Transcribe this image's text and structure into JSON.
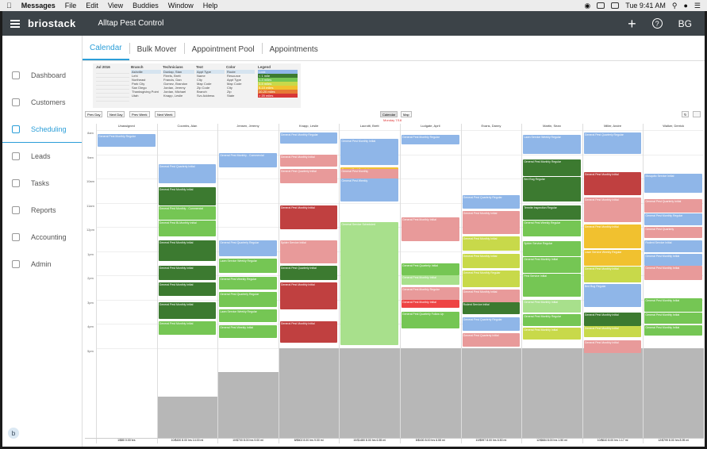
{
  "os_menubar": {
    "items": [
      "Messages",
      "File",
      "Edit",
      "View",
      "Buddies",
      "Window",
      "Help"
    ],
    "clock": "Tue 9:41 AM"
  },
  "topbar": {
    "brand": "briostack",
    "company": "Alltap Pest Control",
    "initials": "BG",
    "add_icon": "+",
    "help_icon": "?"
  },
  "sidebar": {
    "items": [
      "Dashboard",
      "Customers",
      "Scheduling",
      "Leads",
      "Tasks",
      "Reports",
      "Accounting",
      "Admin"
    ],
    "icons": [
      "activity-icon",
      "user-icon",
      "calendar-icon",
      "group-icon",
      "task-icon",
      "report-icon",
      "dollar-icon",
      "admin-icon"
    ],
    "active_index": 2,
    "chat_badge": "b"
  },
  "tabs": {
    "items": [
      "Calendar",
      "Bulk Mover",
      "Appointment Pool",
      "Appointments"
    ],
    "active_index": 0
  },
  "filters": {
    "month": "Jul 2016",
    "branch_header": "Branch",
    "branches": [
      "Ashville",
      "Lehi",
      "Northeast",
      "Park City",
      "San Diego",
      "Thanksgiving Point",
      "Utah"
    ],
    "technicians_header": "Technicians",
    "technicians": [
      "Dunlap, Stan",
      "Fleets, Brett",
      "Francis, Dan",
      "Gomez, Brandon",
      "Jordan, Jeremy",
      "Jordan, Michael",
      "Knapp, Leslie"
    ],
    "text_header": "Text",
    "text_options": [
      "Appt Type",
      "Name",
      "City",
      "Map Code",
      "Zip Code",
      "Branch",
      "Svc Address"
    ],
    "color_header": "Color",
    "color_options": [
      "Route",
      "Resource",
      "Appt Type",
      "Map Code",
      "City",
      "Zip",
      "State"
    ],
    "legend_header": "Legend",
    "legend_items": [
      "Lock",
      "< 1 mile",
      "1-3 miles",
      "3-5 miles",
      "5-10 miles",
      "10-20 miles",
      "> 20 miles"
    ],
    "legend_colors": [
      "#8fb6e8",
      "#3c7a30",
      "#75c654",
      "#c8d94a",
      "#f1c12f",
      "#e77a35",
      "#d73737"
    ]
  },
  "toolbar": {
    "buttons": [
      "Prev Day",
      "Next Day",
      "Prev Week",
      "Next Week"
    ],
    "view_toggle": [
      "Calendar",
      "Map"
    ],
    "date_label": "Monday 7/18",
    "refresh_icon": "↻"
  },
  "calendar": {
    "hours": [
      "8am",
      "9am",
      "10am",
      "11am",
      "12pm",
      "1pm",
      "2pm",
      "3pm",
      "4pm",
      "5pm"
    ],
    "columns": [
      "Unassigned",
      "Coombs, Alan",
      "Jensen, Jeremy",
      "Knapp, Leslie",
      "Lacrotti, Brett",
      "Ludgate, April",
      "Evans, Danny",
      "Martin, Sean",
      "Miller, Andre",
      "Walker, Derrick"
    ],
    "footer": [
      "1/$80 0.00 hrs",
      "10/$430 8.00 hrs 14.00 mi",
      "10/$700 8.00 hrs 9.00 mi",
      "8/$602 8.00 hrs 9.00 mi",
      "10/$1480 8.00 hrs 6.55 mi",
      "8/$430 8.00 hrs 6.55 mi",
      "10/$997 8.00 hrs 6.50 mi",
      "12/$684 8.00 hrs 1.50 mi",
      "10/$610 8.00 hrs 1.17 mi",
      "12/$799 8.00 hrs 8.95 mi"
    ],
    "appointments": [
      {
        "col": 0,
        "start": 8.15,
        "end": 8.7,
        "color": "#8fb6e8",
        "label": "General Pest Monthly Regular"
      },
      {
        "col": 1,
        "start": 9.4,
        "end": 10.2,
        "color": "#8fb6e8",
        "label": "General Pest Quarterly Initial"
      },
      {
        "col": 1,
        "start": 10.35,
        "end": 11.1,
        "color": "#3c7a30",
        "label": "General Pest Monthly Initial"
      },
      {
        "col": 1,
        "start": 11.15,
        "end": 11.7,
        "color": "#75c654",
        "label": "General Pest Monthly - Commercial"
      },
      {
        "col": 1,
        "start": 11.75,
        "end": 12.4,
        "color": "#75c654",
        "label": "General Pest Bi-Monthly Initial"
      },
      {
        "col": 1,
        "start": 12.55,
        "end": 13.4,
        "color": "#3c7a30",
        "label": "General Pest Monthly Initial"
      },
      {
        "col": 1,
        "start": 13.6,
        "end": 14.2,
        "color": "#3c7a30",
        "label": "General Pest Monthly Initial"
      },
      {
        "col": 1,
        "start": 14.3,
        "end": 14.85,
        "color": "#3c7a30",
        "label": "General Pest Monthly Initial"
      },
      {
        "col": 1,
        "start": 15.1,
        "end": 15.8,
        "color": "#3c7a30",
        "label": "General Pest Monthly Initial"
      },
      {
        "col": 1,
        "start": 15.9,
        "end": 16.45,
        "color": "#75c654",
        "label": "General Pest Monthly Initial"
      },
      {
        "col": 2,
        "start": 8.95,
        "end": 9.55,
        "color": "#8fb6e8",
        "label": "General Pest Monthly - Commercial"
      },
      {
        "col": 2,
        "start": 12.55,
        "end": 13.2,
        "color": "#8fb6e8",
        "label": "General Pest Quarterly Regular"
      },
      {
        "col": 2,
        "start": 13.3,
        "end": 13.9,
        "color": "#75c654",
        "label": "Lawn Service Weekly Regular"
      },
      {
        "col": 2,
        "start": 14.05,
        "end": 14.6,
        "color": "#75c654",
        "label": "General Pest Weekly Regular"
      },
      {
        "col": 2,
        "start": 14.7,
        "end": 15.3,
        "color": "#75c654",
        "label": "General Pest Quarterly Regular"
      },
      {
        "col": 2,
        "start": 15.4,
        "end": 15.95,
        "color": "#75c654",
        "label": "Lawn Service Weekly Regular"
      },
      {
        "col": 2,
        "start": 16.05,
        "end": 16.6,
        "color": "#75c654",
        "label": "General Pest Weekly Initial"
      },
      {
        "col": 3,
        "start": 8.1,
        "end": 8.55,
        "color": "#8fb6e8",
        "label": "General Pest Monthly Regular"
      },
      {
        "col": 3,
        "start": 9.0,
        "end": 9.5,
        "color": "#e89a9a",
        "label": "General Pest Monthly Initial"
      },
      {
        "col": 3,
        "start": 9.6,
        "end": 10.2,
        "color": "#e89a9a",
        "label": "General Pest Quarterly Initial"
      },
      {
        "col": 3,
        "start": 11.1,
        "end": 12.1,
        "color": "#c04040",
        "label": "General Pest Monthly Initial"
      },
      {
        "col": 3,
        "start": 12.55,
        "end": 13.5,
        "color": "#e89a9a",
        "label": "Spider Service Initial"
      },
      {
        "col": 3,
        "start": 13.6,
        "end": 14.2,
        "color": "#3c7a30",
        "label": "General Pest Quarterly Initial"
      },
      {
        "col": 3,
        "start": 14.3,
        "end": 15.4,
        "color": "#c04040",
        "label": "General Pest Monthly Initial"
      },
      {
        "col": 3,
        "start": 15.9,
        "end": 16.8,
        "color": "#c04040",
        "label": "General Pest Monthly Initial"
      },
      {
        "col": 4,
        "start": 8.35,
        "end": 9.45,
        "color": "#8fb6e8",
        "label": "General Pest Monthly Initial"
      },
      {
        "col": 4,
        "start": 9.55,
        "end": 10.25,
        "color": "#f1c12f",
        "label": "General Pest Quarterly"
      },
      {
        "col": 4,
        "start": 9.6,
        "end": 10.0,
        "color": "#e89a9a",
        "label": "General Pest Monthly"
      },
      {
        "col": 4,
        "start": 10.0,
        "end": 10.95,
        "color": "#8fb6e8",
        "label": "General Pest Weekly"
      },
      {
        "col": 4,
        "start": 11.8,
        "end": 16.9,
        "color": "#a8e08c",
        "label": "General Service Scheduled"
      },
      {
        "col": 5,
        "start": 8.2,
        "end": 8.6,
        "color": "#8fb6e8",
        "label": "General Pest Monthly Regular"
      },
      {
        "col": 5,
        "start": 11.6,
        "end": 12.6,
        "color": "#e89a9a",
        "label": "General Pest Monthly Initial"
      },
      {
        "col": 5,
        "start": 13.5,
        "end": 14.0,
        "color": "#75c654",
        "label": "General Pest Quarterly Initial"
      },
      {
        "col": 5,
        "start": 14.0,
        "end": 14.4,
        "color": "#a8e08c",
        "label": "General Pest Monthly Initial"
      },
      {
        "col": 5,
        "start": 14.5,
        "end": 15.0,
        "color": "#e89a9a",
        "label": "General Pest Monthly Regular"
      },
      {
        "col": 5,
        "start": 15.0,
        "end": 15.35,
        "color": "#e44",
        "label": "General Pest Monthly Initial"
      },
      {
        "col": 5,
        "start": 15.5,
        "end": 16.2,
        "color": "#75c654",
        "label": "General Pest Quarterly Follow Up"
      },
      {
        "col": 6,
        "start": 10.7,
        "end": 11.25,
        "color": "#8fb6e8",
        "label": "General Pest Quarterly Regular"
      },
      {
        "col": 6,
        "start": 11.35,
        "end": 12.3,
        "color": "#e89a9a",
        "label": "General Pest Monthly Initial"
      },
      {
        "col": 6,
        "start": 12.4,
        "end": 13.0,
        "color": "#c8d94a",
        "label": "General Pest Monthly Initial"
      },
      {
        "col": 6,
        "start": 13.1,
        "end": 13.7,
        "color": "#c8d94a",
        "label": "General Pest Monthly Initial"
      },
      {
        "col": 6,
        "start": 13.8,
        "end": 14.5,
        "color": "#c8d94a",
        "label": "General Pest Monthly Regular"
      },
      {
        "col": 6,
        "start": 14.6,
        "end": 15.1,
        "color": "#e89a9a",
        "label": "General Pest Monthly Initial"
      },
      {
        "col": 6,
        "start": 15.1,
        "end": 15.6,
        "color": "#3c7a30",
        "label": "Rodent Service Initial"
      },
      {
        "col": 6,
        "start": 15.75,
        "end": 16.3,
        "color": "#8fb6e8",
        "label": "General Pest Quarterly Regular"
      },
      {
        "col": 6,
        "start": 16.4,
        "end": 16.95,
        "color": "#e89a9a",
        "label": "General Pest Quarterly Initial"
      },
      {
        "col": 7,
        "start": 8.2,
        "end": 9.0,
        "color": "#8fb6e8",
        "label": "Lawn Service Weekly Regular"
      },
      {
        "col": 7,
        "start": 9.2,
        "end": 9.9,
        "color": "#3c7a30",
        "label": "General Pest Monthly Regular"
      },
      {
        "col": 7,
        "start": 9.95,
        "end": 10.95,
        "color": "#3c7a30",
        "label": "Bed Bug Regular"
      },
      {
        "col": 7,
        "start": 11.1,
        "end": 11.7,
        "color": "#3c7a30",
        "label": "Termite Inspection Regular"
      },
      {
        "col": 7,
        "start": 11.75,
        "end": 12.4,
        "color": "#75c654",
        "label": "General Pest Weekly Regular"
      },
      {
        "col": 7,
        "start": 12.6,
        "end": 13.2,
        "color": "#75c654",
        "label": "Spider Service Regular"
      },
      {
        "col": 7,
        "start": 13.25,
        "end": 13.9,
        "color": "#75c654",
        "label": "General Pest Monthly Initial"
      },
      {
        "col": 7,
        "start": 13.95,
        "end": 14.9,
        "color": "#75c654",
        "label": "Pest Service Initial"
      },
      {
        "col": 7,
        "start": 15.0,
        "end": 15.55,
        "color": "#a8e08c",
        "label": "General Pest Monthly Initial"
      },
      {
        "col": 7,
        "start": 15.6,
        "end": 16.1,
        "color": "#75c654",
        "label": "General Pest Monthly Regular"
      },
      {
        "col": 7,
        "start": 16.15,
        "end": 16.65,
        "color": "#c8d94a",
        "label": "General Pest Monthly Initial"
      },
      {
        "col": 8,
        "start": 8.1,
        "end": 9.0,
        "color": "#8fb6e8",
        "label": "General Pest Quarterly Regular"
      },
      {
        "col": 8,
        "start": 9.75,
        "end": 10.7,
        "color": "#c04040",
        "label": "General Pest Monthly Initial"
      },
      {
        "col": 8,
        "start": 10.8,
        "end": 11.8,
        "color": "#e89a9a",
        "label": "General Pest Monthly Initial"
      },
      {
        "col": 8,
        "start": 11.9,
        "end": 12.9,
        "color": "#f1c12f",
        "label": "General Pest Monthly Initial"
      },
      {
        "col": 8,
        "start": 12.95,
        "end": 13.6,
        "color": "#f1c12f",
        "label": "Lawn Service Weekly Regular"
      },
      {
        "col": 8,
        "start": 13.65,
        "end": 14.3,
        "color": "#c8d94a",
        "label": "General Pest Monthly Initial"
      },
      {
        "col": 8,
        "start": 14.35,
        "end": 15.3,
        "color": "#8fb6e8",
        "label": "Bed Bug Regular"
      },
      {
        "col": 8,
        "start": 15.55,
        "end": 16.1,
        "color": "#3c7a30",
        "label": "General Pest Monthly Initial"
      },
      {
        "col": 8,
        "start": 16.1,
        "end": 16.55,
        "color": "#c8d94a",
        "label": "General Pest Monthly Initial"
      },
      {
        "col": 8,
        "start": 16.7,
        "end": 17.2,
        "color": "#e89a9a",
        "label": "General Pest Monthly Initial"
      },
      {
        "col": 9,
        "start": 9.8,
        "end": 10.6,
        "color": "#8fb6e8",
        "label": "Mosquito Service Initial"
      },
      {
        "col": 9,
        "start": 10.85,
        "end": 11.4,
        "color": "#e89a9a",
        "label": "General Pest Quarterly Initial"
      },
      {
        "col": 9,
        "start": 11.45,
        "end": 11.95,
        "color": "#8fb6e8",
        "label": "General Pest Monthly Regular"
      },
      {
        "col": 9,
        "start": 12.0,
        "end": 12.45,
        "color": "#e89a9a",
        "label": "General Pest Quarterly"
      },
      {
        "col": 9,
        "start": 12.55,
        "end": 13.05,
        "color": "#8fb6e8",
        "label": "Rodent Service Initial"
      },
      {
        "col": 9,
        "start": 13.1,
        "end": 13.6,
        "color": "#8fb6e8",
        "label": "General Pest Monthly Initial"
      },
      {
        "col": 9,
        "start": 13.6,
        "end": 14.2,
        "color": "#e89a9a",
        "label": "General Pest Monthly Initial"
      },
      {
        "col": 9,
        "start": 14.95,
        "end": 15.5,
        "color": "#75c654",
        "label": "General Pest Monthly Initial"
      },
      {
        "col": 9,
        "start": 15.55,
        "end": 16.0,
        "color": "#75c654",
        "label": "General Pest Monthly Initial"
      },
      {
        "col": 9,
        "start": 16.05,
        "end": 16.5,
        "color": "#75c654",
        "label": "General Pest Monthly Initial"
      }
    ],
    "unavailable": [
      {
        "col": 1,
        "start": 19.0,
        "end": 21.3
      },
      {
        "col": 2,
        "start": 18.0,
        "end": 21.3
      },
      {
        "col": 3,
        "start": 17.0,
        "end": 21.3
      },
      {
        "col": 4,
        "start": 17.0,
        "end": 21.3
      },
      {
        "col": 5,
        "start": 17.0,
        "end": 21.3
      },
      {
        "col": 6,
        "start": 17.0,
        "end": 21.3
      },
      {
        "col": 7,
        "start": 17.0,
        "end": 21.3
      },
      {
        "col": 8,
        "start": 17.0,
        "end": 21.3
      },
      {
        "col": 9,
        "start": 17.0,
        "end": 21.3
      }
    ]
  }
}
